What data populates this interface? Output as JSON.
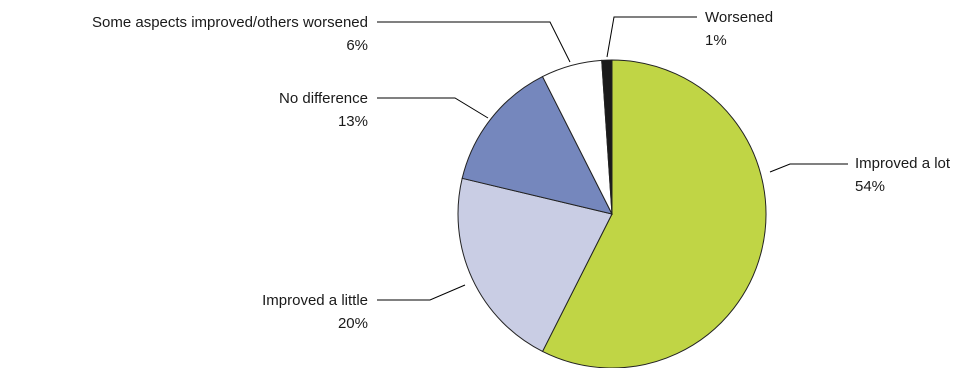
{
  "chart_data": {
    "type": "pie",
    "title": "",
    "slices": [
      {
        "label": "Improved a lot",
        "pct_label": "54%",
        "value": 54,
        "color": "#c0d545"
      },
      {
        "label": "Improved a little",
        "pct_label": "20%",
        "value": 20,
        "color": "#c9cde4"
      },
      {
        "label": "No difference",
        "pct_label": "13%",
        "value": 13,
        "color": "#7587bd"
      },
      {
        "label": "Some aspects improved/others worsened",
        "pct_label": "6%",
        "value": 6,
        "color": "#ffffff"
      },
      {
        "label": "Worsened",
        "pct_label": "1%",
        "value": 1,
        "color": "#1a1a1a"
      }
    ],
    "start_angle": "12 o'clock",
    "direction": "clockwise",
    "legend": "none (callout labels with leader lines)"
  }
}
